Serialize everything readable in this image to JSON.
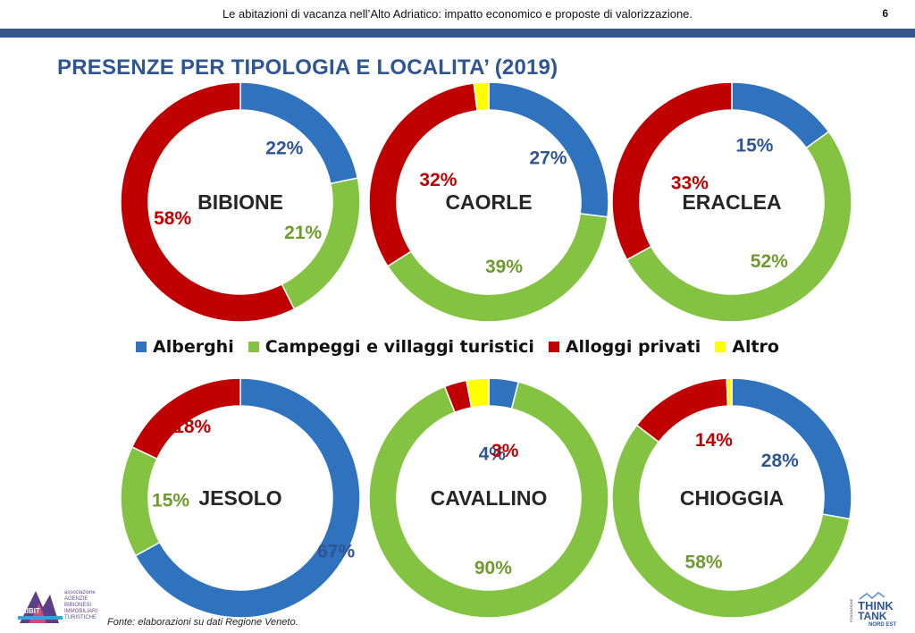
{
  "header": {
    "title": "Le abitazioni di vacanza nell’Alto Adriatico: impatto economico e proposte di valorizzazione.",
    "page_number": "6"
  },
  "slide_title": "PRESENZE PER TIPOLOGIA E LOCALITA’ (2019)",
  "source": "Fonte: elaborazioni su dati Regione Veneto.",
  "colors": {
    "Alberghi": "#2f72be",
    "Campeggi e villaggi turistici": "#84c341",
    "Alloggi privati": "#c00000",
    "Altro": "#ffff00",
    "label_Alberghi": "#2e5594",
    "label_Campeggi e villaggi turistici": "#6f9a2d",
    "label_Alloggi privati": "#c00000",
    "label_Altro": "#b8b800"
  },
  "legend": [
    "Alberghi",
    "Campeggi e villaggi turistici",
    "Alloggi privati",
    "Altro"
  ],
  "logos": {
    "left_lines": [
      "associazione",
      "AGENZIE",
      "BIBIONESI",
      "IMMOBILIARI",
      "TURISTICHE"
    ],
    "left_mark": "AIBIT",
    "right_small": "FONDAZIONE",
    "right_line1": "THINK",
    "right_line2": "TANK",
    "right_line3": "NORD EST"
  },
  "chart_data": [
    {
      "type": "donut",
      "title": "BIBIONE",
      "categories": [
        "Alberghi",
        "Campeggi e villaggi turistici",
        "Alloggi privati",
        "Altro"
      ],
      "values": [
        22,
        21,
        58,
        0
      ],
      "labels": [
        "22%",
        "21%",
        "58%",
        ""
      ]
    },
    {
      "type": "donut",
      "title": "CAORLE",
      "categories": [
        "Alberghi",
        "Campeggi e villaggi turistici",
        "Alloggi privati",
        "Altro"
      ],
      "values": [
        27,
        39,
        32,
        2
      ],
      "labels": [
        "27%",
        "39%",
        "32%",
        ""
      ]
    },
    {
      "type": "donut",
      "title": "ERACLEA",
      "categories": [
        "Alberghi",
        "Campeggi e villaggi turistici",
        "Alloggi privati",
        "Altro"
      ],
      "values": [
        15,
        52,
        33,
        0
      ],
      "labels": [
        "15%",
        "52%",
        "33%",
        ""
      ]
    },
    {
      "type": "donut",
      "title": "JESOLO",
      "categories": [
        "Alberghi",
        "Campeggi e villaggi turistici",
        "Alloggi privati",
        "Altro"
      ],
      "values": [
        67,
        15,
        18,
        0
      ],
      "labels": [
        "67%",
        "15%",
        "18%",
        ""
      ]
    },
    {
      "type": "donut",
      "title": "CAVALLINO",
      "categories": [
        "Alberghi",
        "Campeggi e villaggi turistici",
        "Alloggi privati",
        "Altro"
      ],
      "values": [
        4,
        90,
        3,
        3
      ],
      "labels": [
        "4%",
        "90%",
        "3%",
        ""
      ]
    },
    {
      "type": "donut",
      "title": "CHIOGGIA",
      "categories": [
        "Alberghi",
        "Campeggi e villaggi turistici",
        "Alloggi privati",
        "Altro"
      ],
      "values": [
        28,
        58,
        14,
        0.7
      ],
      "labels": [
        "28%",
        "58%",
        "14%",
        ""
      ]
    }
  ]
}
